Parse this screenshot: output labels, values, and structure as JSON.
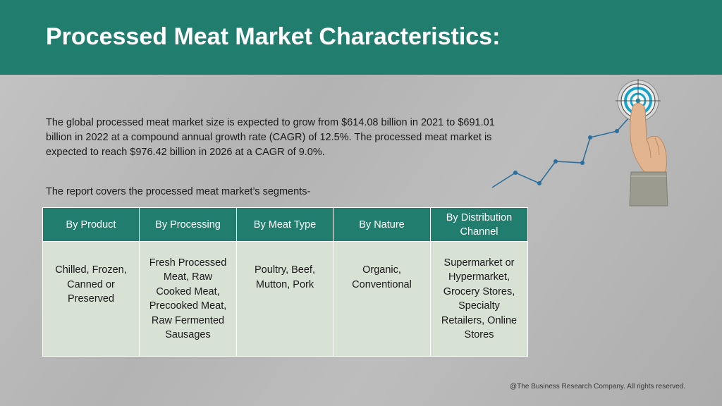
{
  "header": {
    "title": "Processed Meat Market Characteristics:"
  },
  "intro": {
    "text": "The global processed meat market size is expected to grow from $614.08 billion in 2021 to $691.01 billion in 2022 at a compound annual growth rate (CAGR) of 12.5%. The processed meat market is expected to reach $976.42 billion in 2026 at a CAGR of 9.0%."
  },
  "segments_intro": "The report covers the processed meat market’s segments-",
  "table": {
    "headers": [
      "By Product",
      "By Processing",
      "By Meat Type",
      "By Nature",
      "By Distribution Channel"
    ],
    "cells": [
      "Chilled, Frozen, Canned or Preserved",
      "Fresh Processed Meat, Raw Cooked Meat, Precooked Meat, Raw Fermented Sausages",
      "Poultry, Beef, Mutton, Pork",
      "Organic, Conventional",
      "Supermarket or Hypermarket, Grocery Stores, Specialty Retailers, Online Stores"
    ]
  },
  "footer": "@The Business Research Company. All rights reserved.",
  "graphic": {
    "icon": "growth-target-icon",
    "colors": {
      "header": "#217d6d",
      "line": "#2a6f9e",
      "target_ring": "#1aa3c8"
    }
  },
  "colors": {
    "header_bg": "#217d6d",
    "table_header_bg": "#217d6d",
    "table_cell_bg": "#d7e1d4",
    "page_bg": "#b9b9b9"
  }
}
